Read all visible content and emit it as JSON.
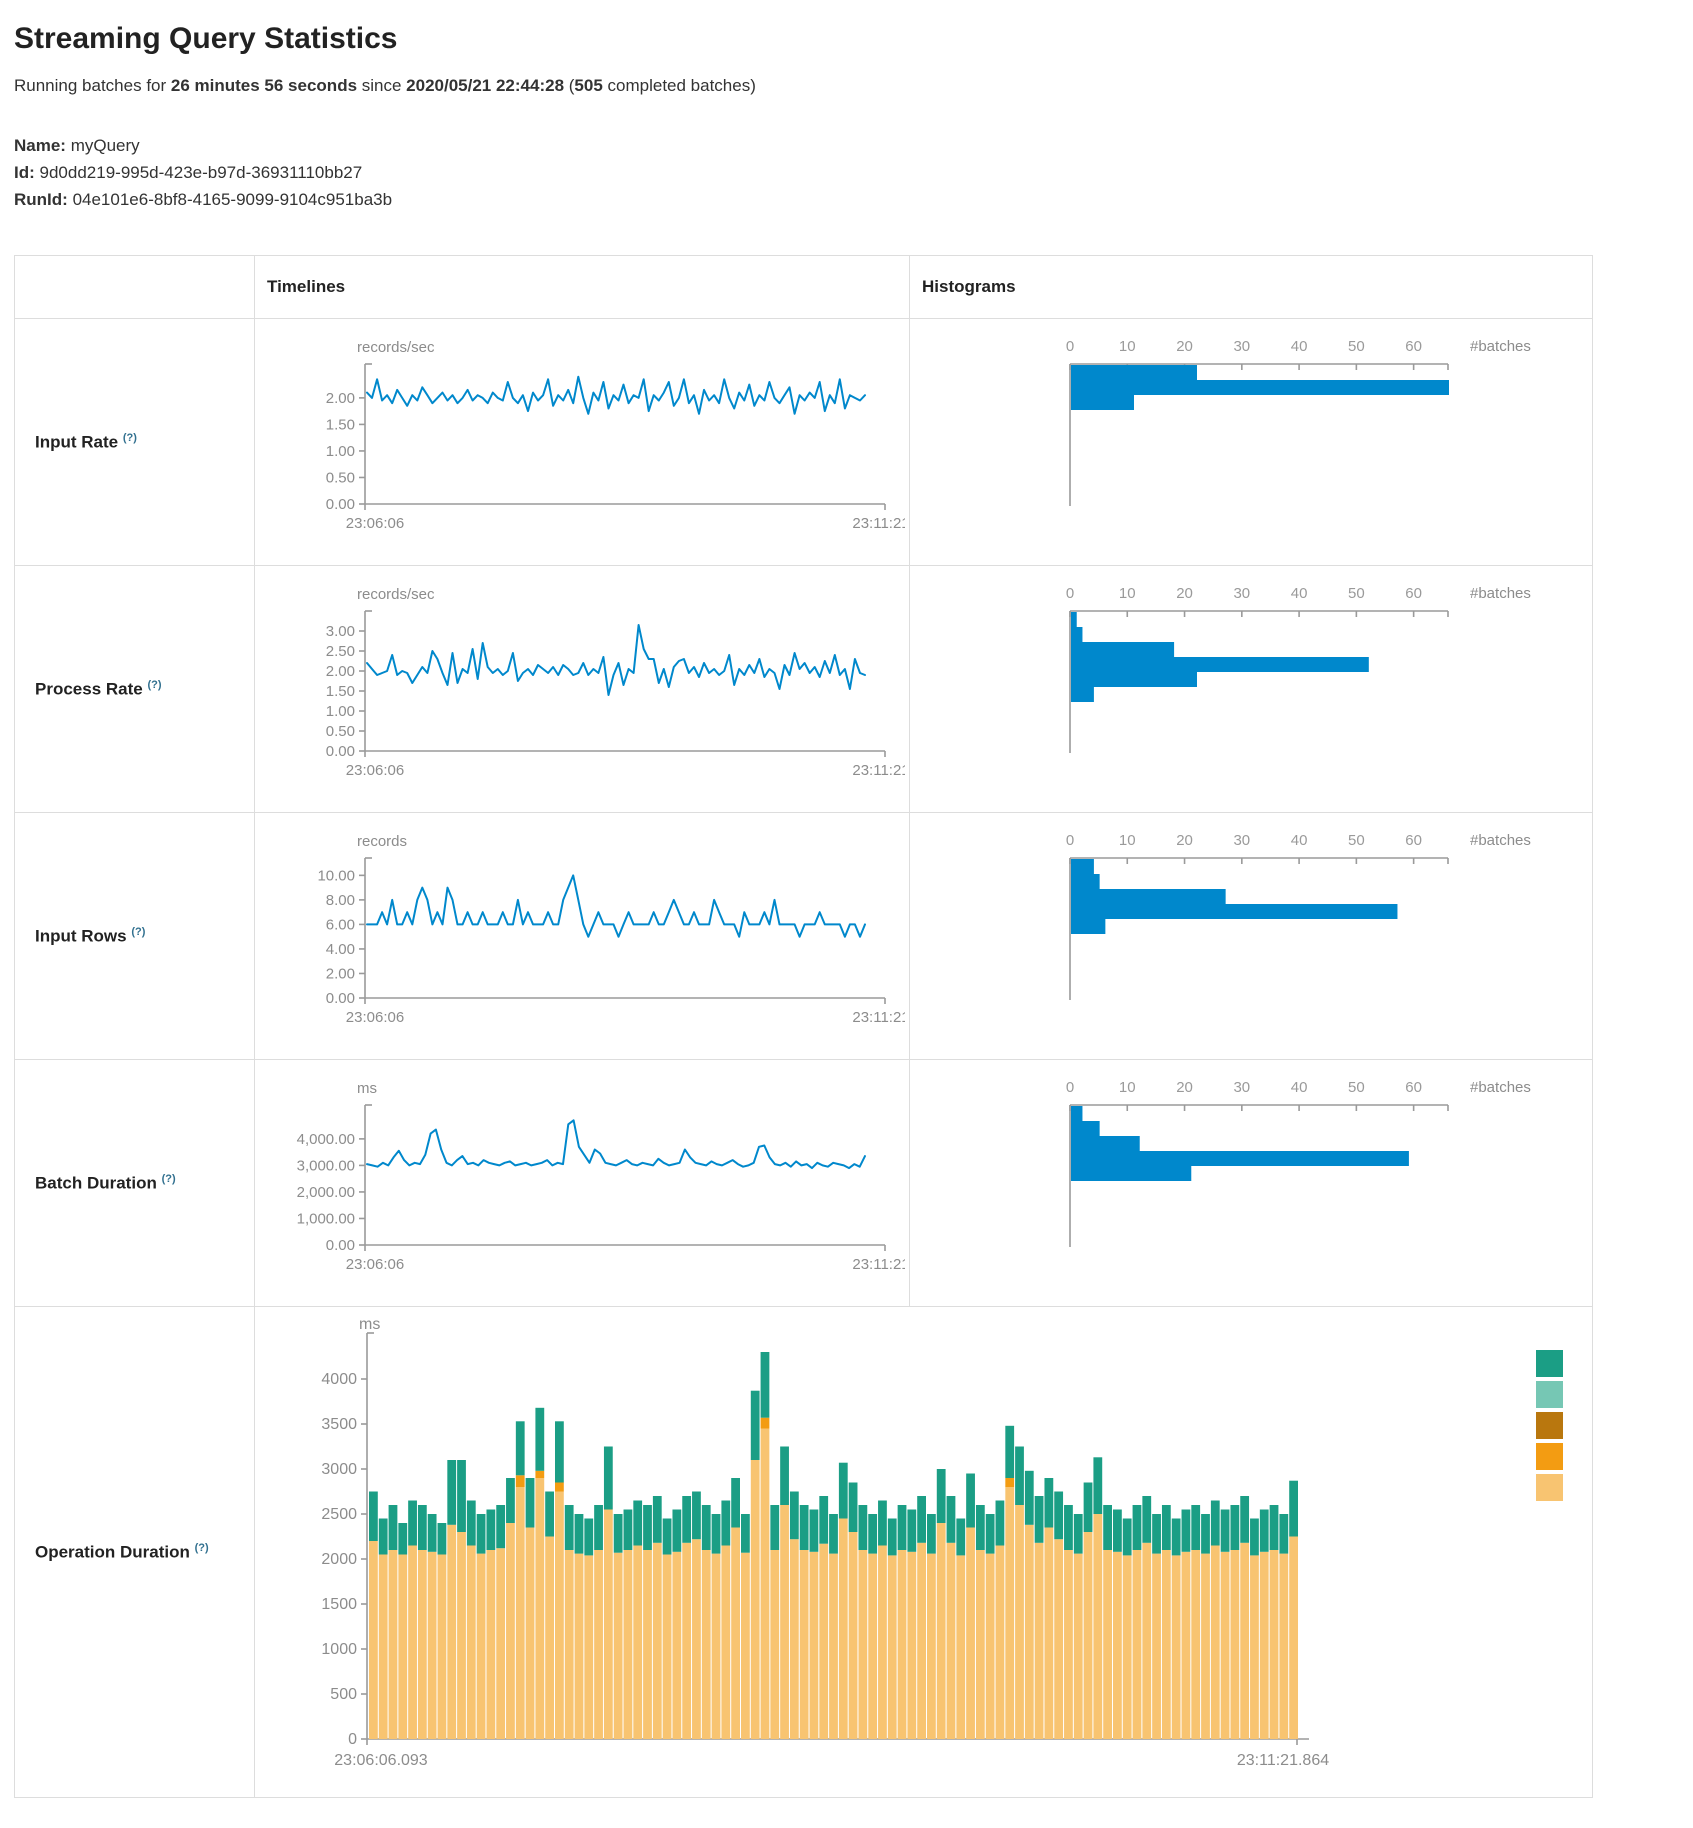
{
  "page": {
    "title": "Streaming Query Statistics",
    "subtitle": {
      "prefix": "Running batches for ",
      "duration": "26 minutes 56 seconds",
      "middle": " since ",
      "start_time": "2020/05/21 22:44:28",
      "paren": " (",
      "batch_count": "505",
      "suffix": " completed batches)"
    },
    "name_label": "Name:",
    "name_value": "myQuery",
    "id_label": "Id:",
    "id_value": "9d0dd219-995d-423e-b97d-36931110bb27",
    "runid_label": "RunId:",
    "runid_value": "04e101e6-8bf8-4165-9099-9104c951ba3b"
  },
  "table": {
    "timelines_header": "Timelines",
    "histograms_header": "Histograms"
  },
  "rows": [
    {
      "label": "Input Rate",
      "help": "(?)"
    },
    {
      "label": "Process Rate",
      "help": "(?)"
    },
    {
      "label": "Input Rows",
      "help": "(?)"
    },
    {
      "label": "Batch Duration",
      "help": "(?)"
    },
    {
      "label": "Operation Duration",
      "help": "(?)"
    }
  ],
  "colors": {
    "accent_blue": "#0088cc",
    "axis": "#9a9a9a",
    "tick_text": "#8c8c8c",
    "border": "#dddddd"
  },
  "chart_data": [
    {
      "type": "line",
      "title": "Input Rate timeline",
      "ylabel": "records/sec",
      "x_start": "23:06:06",
      "x_end": "23:11:21",
      "ymax": 2.45,
      "y_ticks": [
        {
          "label": "2.00",
          "v": 2
        },
        {
          "label": "1.50",
          "v": 1.5
        },
        {
          "label": "1.00",
          "v": 1
        },
        {
          "label": "0.50",
          "v": 0.5
        },
        {
          "label": "0.00",
          "v": 0
        }
      ],
      "values": [
        2.1,
        2.0,
        2.35,
        1.95,
        2.05,
        1.9,
        2.15,
        2.0,
        1.85,
        2.05,
        1.95,
        2.2,
        2.05,
        1.9,
        2.0,
        2.1,
        1.95,
        2.05,
        1.9,
        2.0,
        2.15,
        1.95,
        2.05,
        2.0,
        1.9,
        2.1,
        2.0,
        1.95,
        2.3,
        2.0,
        1.9,
        2.05,
        1.75,
        2.1,
        1.95,
        2.05,
        2.35,
        1.85,
        2.05,
        1.95,
        2.15,
        1.9,
        2.4,
        2.0,
        1.7,
        2.1,
        1.95,
        2.3,
        1.8,
        2.05,
        1.95,
        2.25,
        1.9,
        2.05,
        2.0,
        2.35,
        1.75,
        2.05,
        1.95,
        2.1,
        2.3,
        1.85,
        2.0,
        2.35,
        1.9,
        2.05,
        1.7,
        2.15,
        1.95,
        2.05,
        1.9,
        2.35,
        2.0,
        1.8,
        2.1,
        1.95,
        2.25,
        1.85,
        2.05,
        1.95,
        2.3,
        2.0,
        1.9,
        2.05,
        2.2,
        1.7,
        2.05,
        1.95,
        2.1,
        2.0,
        2.3,
        1.75,
        2.05,
        1.9,
        2.35,
        1.8,
        2.05,
        2.0,
        1.95,
        2.05
      ]
    },
    {
      "type": "bar",
      "title": "Input Rate histogram",
      "xlabel": "#batches",
      "xmax": 66,
      "x_ticks": [
        0,
        10,
        20,
        30,
        40,
        50,
        60
      ],
      "values": [
        22,
        66,
        11
      ]
    },
    {
      "type": "line",
      "title": "Process Rate timeline",
      "ylabel": "records/sec",
      "x_start": "23:06:06",
      "x_end": "23:11:21",
      "ymax": 3.25,
      "y_ticks": [
        {
          "label": "3.00",
          "v": 3
        },
        {
          "label": "2.50",
          "v": 2.5
        },
        {
          "label": "2.00",
          "v": 2
        },
        {
          "label": "1.50",
          "v": 1.5
        },
        {
          "label": "1.00",
          "v": 1
        },
        {
          "label": "0.50",
          "v": 0.5
        },
        {
          "label": "0.00",
          "v": 0
        }
      ],
      "values": [
        2.2,
        2.05,
        1.9,
        1.95,
        2.0,
        2.4,
        1.9,
        2.0,
        1.95,
        1.7,
        1.9,
        2.1,
        1.95,
        2.5,
        2.3,
        1.95,
        1.65,
        2.45,
        1.7,
        2.05,
        1.95,
        2.55,
        1.8,
        2.7,
        2.1,
        1.95,
        2.05,
        1.9,
        2.0,
        2.45,
        1.75,
        1.95,
        2.05,
        1.9,
        2.15,
        2.05,
        1.95,
        2.1,
        1.9,
        2.15,
        2.05,
        1.9,
        1.95,
        2.2,
        1.9,
        2.05,
        1.95,
        2.35,
        1.4,
        1.9,
        2.2,
        1.65,
        2.05,
        1.95,
        3.15,
        2.55,
        2.3,
        2.3,
        1.7,
        2.05,
        1.6,
        2.1,
        2.25,
        2.3,
        1.95,
        2.1,
        1.85,
        2.2,
        1.95,
        2.05,
        1.9,
        2.0,
        2.4,
        1.65,
        2.05,
        1.9,
        2.15,
        1.95,
        2.3,
        1.85,
        2.05,
        1.95,
        1.55,
        2.15,
        1.9,
        2.45,
        2.05,
        2.2,
        1.95,
        2.1,
        1.85,
        2.25,
        1.95,
        2.4,
        1.9,
        2.05,
        1.55,
        2.3,
        1.95,
        1.9
      ]
    },
    {
      "type": "bar",
      "title": "Process Rate histogram",
      "xlabel": "#batches",
      "xmax": 66,
      "x_ticks": [
        0,
        10,
        20,
        30,
        40,
        50,
        60
      ],
      "values": [
        1,
        2,
        18,
        52,
        22,
        4
      ]
    },
    {
      "type": "line",
      "title": "Input Rows timeline",
      "ylabel": "records",
      "x_start": "23:06:06",
      "x_end": "23:11:21",
      "ymax": 10.6,
      "y_ticks": [
        {
          "label": "10.00",
          "v": 10
        },
        {
          "label": "8.00",
          "v": 8
        },
        {
          "label": "6.00",
          "v": 6
        },
        {
          "label": "4.00",
          "v": 4
        },
        {
          "label": "2.00",
          "v": 2
        },
        {
          "label": "0.00",
          "v": 0
        }
      ],
      "values": [
        6,
        6,
        6,
        7,
        6,
        8,
        6,
        6,
        7,
        6,
        8,
        9,
        8,
        6,
        7,
        6,
        9,
        8,
        6,
        6,
        7,
        6,
        6,
        7,
        6,
        6,
        6,
        7,
        6,
        6,
        8,
        6,
        7,
        6,
        6,
        6,
        7,
        6,
        6,
        8,
        9,
        10,
        8,
        6,
        5,
        6,
        7,
        6,
        6,
        6,
        5,
        6,
        7,
        6,
        6,
        6,
        6,
        7,
        6,
        6,
        7,
        8,
        7,
        6,
        6,
        7,
        6,
        6,
        6,
        8,
        7,
        6,
        6,
        6,
        5,
        7,
        6,
        6,
        6,
        7,
        6,
        8,
        6,
        6,
        6,
        6,
        5,
        6,
        6,
        6,
        7,
        6,
        6,
        6,
        6,
        5,
        6,
        6,
        5,
        6
      ]
    },
    {
      "type": "bar",
      "title": "Input Rows histogram",
      "xlabel": "#batches",
      "xmax": 66,
      "x_ticks": [
        0,
        10,
        20,
        30,
        40,
        50,
        60
      ],
      "values": [
        4,
        5,
        27,
        57,
        6
      ]
    },
    {
      "type": "line",
      "title": "Batch Duration timeline",
      "ylabel": "ms",
      "x_start": "23:06:06",
      "x_end": "23:11:21",
      "ymax": 4900,
      "y_ticks": [
        {
          "label": "4,000.00",
          "v": 4000
        },
        {
          "label": "3,000.00",
          "v": 3000
        },
        {
          "label": "2,000.00",
          "v": 2000
        },
        {
          "label": "1,000.00",
          "v": 1000
        },
        {
          "label": "0.00",
          "v": 0
        }
      ],
      "values": [
        3050,
        3000,
        2950,
        3100,
        3000,
        3300,
        3550,
        3200,
        3000,
        3100,
        3050,
        3400,
        4200,
        4350,
        3600,
        3100,
        3000,
        3200,
        3350,
        3050,
        3100,
        3000,
        3200,
        3100,
        3050,
        3000,
        3100,
        3150,
        3000,
        3050,
        3100,
        3000,
        3050,
        3100,
        3200,
        3000,
        3100,
        3050,
        4550,
        4700,
        3700,
        3400,
        3100,
        3600,
        3450,
        3100,
        3050,
        3000,
        3100,
        3200,
        3050,
        3000,
        3100,
        3050,
        3000,
        3250,
        3100,
        3000,
        3050,
        3100,
        3600,
        3300,
        3100,
        3050,
        3000,
        3150,
        3050,
        3000,
        3100,
        3200,
        3050,
        2950,
        3000,
        3100,
        3700,
        3750,
        3300,
        3050,
        3000,
        3100,
        2950,
        3150,
        3000,
        3050,
        2900,
        3100,
        3000,
        2950,
        3100,
        3050,
        3000,
        2900,
        3050,
        2950,
        3350
      ]
    },
    {
      "type": "bar",
      "title": "Batch Duration histogram",
      "xlabel": "#batches",
      "xmax": 66,
      "x_ticks": [
        0,
        10,
        20,
        30,
        40,
        50,
        60
      ],
      "values": [
        2,
        5,
        12,
        59,
        21
      ]
    },
    {
      "type": "stacked-bar",
      "title": "Operation Duration",
      "ylabel": "ms",
      "x_start": "23:06:06.093",
      "x_end": "23:11:21.864",
      "ymax": 4400,
      "y_ticks": [
        {
          "label": "4000",
          "v": 4000
        },
        {
          "label": "3500",
          "v": 3500
        },
        {
          "label": "3000",
          "v": 3000
        },
        {
          "label": "2500",
          "v": 2500
        },
        {
          "label": "2000",
          "v": 2000
        },
        {
          "label": "1500",
          "v": 1500
        },
        {
          "label": "1000",
          "v": 1000
        },
        {
          "label": "500",
          "v": 500
        },
        {
          "label": "0",
          "v": 0
        }
      ],
      "segment_colors": [
        "#f8c471",
        "#f39c12",
        "#1b9e85"
      ],
      "legend_colors": [
        "#1b9e85",
        "#76c7b4",
        "#b9770e",
        "#f39c12",
        "#f8c471"
      ],
      "bars": [
        [
          2200,
          0,
          550
        ],
        [
          2050,
          0,
          400
        ],
        [
          2100,
          0,
          500
        ],
        [
          2050,
          0,
          350
        ],
        [
          2150,
          0,
          500
        ],
        [
          2100,
          0,
          500
        ],
        [
          2080,
          0,
          420
        ],
        [
          2050,
          0,
          350
        ],
        [
          2380,
          0,
          720
        ],
        [
          2300,
          0,
          800
        ],
        [
          2150,
          0,
          500
        ],
        [
          2060,
          0,
          440
        ],
        [
          2100,
          0,
          450
        ],
        [
          2120,
          0,
          480
        ],
        [
          2400,
          0,
          500
        ],
        [
          2800,
          130,
          600
        ],
        [
          2350,
          0,
          550
        ],
        [
          2900,
          80,
          700
        ],
        [
          2250,
          0,
          500
        ],
        [
          2750,
          100,
          680
        ],
        [
          2100,
          0,
          500
        ],
        [
          2060,
          0,
          440
        ],
        [
          2040,
          0,
          410
        ],
        [
          2100,
          0,
          500
        ],
        [
          2550,
          0,
          700
        ],
        [
          2070,
          0,
          430
        ],
        [
          2100,
          0,
          450
        ],
        [
          2150,
          0,
          500
        ],
        [
          2100,
          0,
          500
        ],
        [
          2180,
          0,
          520
        ],
        [
          2050,
          0,
          400
        ],
        [
          2080,
          0,
          470
        ],
        [
          2180,
          0,
          520
        ],
        [
          2220,
          0,
          530
        ],
        [
          2100,
          0,
          500
        ],
        [
          2060,
          0,
          440
        ],
        [
          2150,
          0,
          500
        ],
        [
          2350,
          0,
          550
        ],
        [
          2070,
          0,
          430
        ],
        [
          3100,
          0,
          770
        ],
        [
          3450,
          120,
          730
        ],
        [
          2100,
          0,
          500
        ],
        [
          2600,
          0,
          650
        ],
        [
          2220,
          0,
          530
        ],
        [
          2100,
          0,
          500
        ],
        [
          2080,
          0,
          470
        ],
        [
          2170,
          0,
          530
        ],
        [
          2060,
          0,
          440
        ],
        [
          2450,
          0,
          620
        ],
        [
          2300,
          0,
          550
        ],
        [
          2100,
          0,
          500
        ],
        [
          2060,
          0,
          440
        ],
        [
          2150,
          0,
          500
        ],
        [
          2040,
          0,
          410
        ],
        [
          2100,
          0,
          500
        ],
        [
          2080,
          0,
          470
        ],
        [
          2180,
          0,
          520
        ],
        [
          2060,
          0,
          440
        ],
        [
          2400,
          0,
          600
        ],
        [
          2180,
          0,
          520
        ],
        [
          2040,
          0,
          410
        ],
        [
          2350,
          0,
          600
        ],
        [
          2100,
          0,
          500
        ],
        [
          2060,
          0,
          440
        ],
        [
          2150,
          0,
          500
        ],
        [
          2800,
          100,
          580
        ],
        [
          2600,
          0,
          650
        ],
        [
          2380,
          0,
          600
        ],
        [
          2180,
          0,
          520
        ],
        [
          2350,
          0,
          550
        ],
        [
          2220,
          0,
          530
        ],
        [
          2100,
          0,
          500
        ],
        [
          2060,
          0,
          440
        ],
        [
          2300,
          0,
          550
        ],
        [
          2500,
          0,
          630
        ],
        [
          2100,
          0,
          500
        ],
        [
          2080,
          0,
          470
        ],
        [
          2040,
          0,
          410
        ],
        [
          2100,
          0,
          500
        ],
        [
          2180,
          0,
          520
        ],
        [
          2060,
          0,
          440
        ],
        [
          2100,
          0,
          500
        ],
        [
          2040,
          0,
          410
        ],
        [
          2080,
          0,
          470
        ],
        [
          2100,
          0,
          500
        ],
        [
          2060,
          0,
          440
        ],
        [
          2150,
          0,
          500
        ],
        [
          2080,
          0,
          470
        ],
        [
          2100,
          0,
          500
        ],
        [
          2180,
          0,
          520
        ],
        [
          2040,
          0,
          410
        ],
        [
          2080,
          0,
          470
        ],
        [
          2100,
          0,
          500
        ],
        [
          2060,
          0,
          440
        ],
        [
          2250,
          0,
          620
        ]
      ]
    }
  ]
}
